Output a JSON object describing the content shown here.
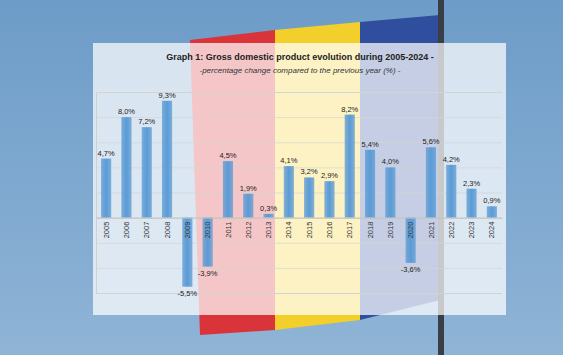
{
  "chart_data": {
    "type": "bar",
    "title": "Graph 1: Gross domestic product evolution during 2005-2024 -",
    "subtitle": "-percentage change compared to the previous year (%) -",
    "categories": [
      "2005",
      "2006",
      "2007",
      "2008",
      "2009",
      "2010",
      "2011",
      "2012",
      "2013",
      "2014",
      "2015",
      "2016",
      "2017",
      "2018",
      "2019",
      "2020",
      "2021",
      "2022",
      "2023",
      "2024"
    ],
    "values": [
      4.7,
      8.0,
      7.2,
      9.3,
      -5.5,
      -3.9,
      4.5,
      1.9,
      0.3,
      4.1,
      3.2,
      2.9,
      8.2,
      5.4,
      4.0,
      -3.6,
      5.6,
      4.2,
      2.3,
      0.9
    ],
    "value_labels": [
      "4,7%",
      "8,0%",
      "7,2%",
      "9,3%",
      "-5,5%",
      "-3,9%",
      "4,5%",
      "1,9%",
      "0,3%",
      "4,1%",
      "3,2%",
      "2,9%",
      "8,2%",
      "5,4%",
      "4,0%",
      "-3,6%",
      "5,6%",
      "4,2%",
      "2,3%",
      "0,9%"
    ],
    "color": "#5b9bd5",
    "ylim": [
      -6,
      10
    ],
    "yticks": [
      -6,
      -4,
      -2,
      0,
      2,
      4,
      6,
      8,
      10
    ],
    "grid": true,
    "data_labels": true,
    "tick_labels": "x"
  }
}
